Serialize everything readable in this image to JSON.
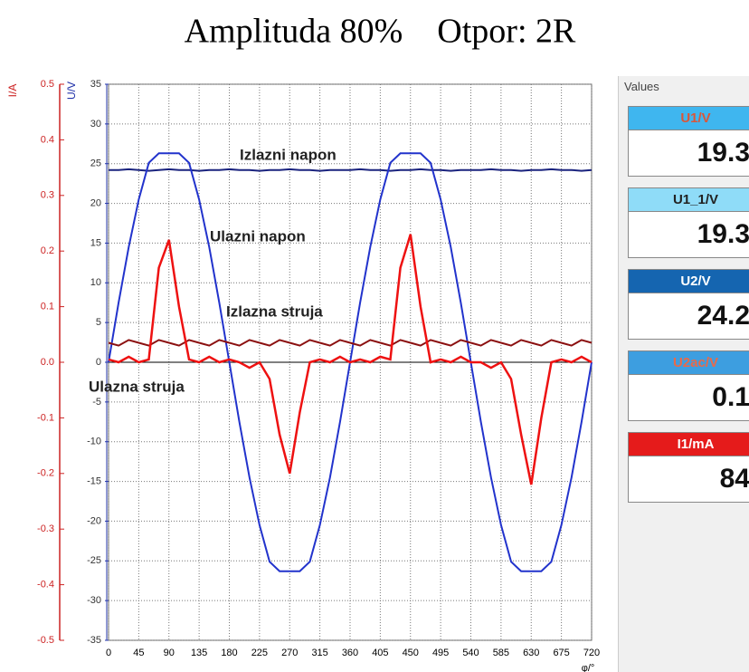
{
  "chart_data": {
    "type": "line",
    "title": "Amplituda 80%    Otpor: 2R",
    "xlabel": "φ/°",
    "ylabel": "U/V",
    "y2label": "I/A",
    "x": [
      0,
      15,
      30,
      45,
      60,
      75,
      90,
      105,
      120,
      135,
      150,
      165,
      180,
      195,
      210,
      225,
      240,
      255,
      270,
      285,
      300,
      315,
      330,
      345,
      360,
      375,
      390,
      405,
      420,
      435,
      450,
      465,
      480,
      495,
      510,
      525,
      540,
      555,
      570,
      585,
      600,
      615,
      630,
      645,
      660,
      675,
      690,
      705,
      720
    ],
    "series": [
      {
        "name": "Izlazni napon",
        "color": "#1a237e",
        "values": [
          24.2,
          24.2,
          24.3,
          24.2,
          24.1,
          24.2,
          24.3,
          24.2,
          24.2,
          24.1,
          24.2,
          24.2,
          24.3,
          24.2,
          24.2,
          24.1,
          24.2,
          24.2,
          24.3,
          24.2,
          24.2,
          24.1,
          24.2,
          24.2,
          24.2,
          24.3,
          24.2,
          24.2,
          24.1,
          24.2,
          24.2,
          24.3,
          24.2,
          24.2,
          24.1,
          24.2,
          24.2,
          24.2,
          24.3,
          24.2,
          24.2,
          24.1,
          24.2,
          24.2,
          24.3,
          24.2,
          24.2,
          24.1,
          24.2
        ]
      },
      {
        "name": "Ulazni napon",
        "color": "#2233cc",
        "values": [
          0,
          7.5,
          14.5,
          20.5,
          25.1,
          26.3,
          26.3,
          26.3,
          25.1,
          20.5,
          14.5,
          7.5,
          0,
          -7.5,
          -14.5,
          -20.5,
          -25.1,
          -26.3,
          -26.3,
          -26.3,
          -25.1,
          -20.5,
          -14.5,
          -7.5,
          0,
          7.5,
          14.5,
          20.5,
          25.1,
          26.3,
          26.3,
          26.3,
          25.1,
          20.5,
          14.5,
          7.5,
          0,
          -7.5,
          -14.5,
          -20.5,
          -25.1,
          -26.3,
          -26.3,
          -26.3,
          -25.1,
          -20.5,
          -14.5,
          -7.5,
          0
        ]
      },
      {
        "name": "Izlazna struja",
        "color": "#8b1010",
        "axis": "y2",
        "values": [
          0.035,
          0.03,
          0.04,
          0.035,
          0.03,
          0.04,
          0.035,
          0.03,
          0.04,
          0.035,
          0.03,
          0.04,
          0.035,
          0.03,
          0.04,
          0.035,
          0.03,
          0.04,
          0.035,
          0.03,
          0.04,
          0.035,
          0.03,
          0.04,
          0.035,
          0.03,
          0.04,
          0.035,
          0.03,
          0.04,
          0.035,
          0.03,
          0.04,
          0.035,
          0.03,
          0.04,
          0.035,
          0.03,
          0.04,
          0.035,
          0.03,
          0.04,
          0.035,
          0.03,
          0.04,
          0.035,
          0.03,
          0.04,
          0.035
        ]
      },
      {
        "name": "Ulazna struja",
        "color": "#ee1111",
        "axis": "y2",
        "values": [
          0.005,
          0,
          0.01,
          0,
          0.005,
          0.17,
          0.22,
          0.1,
          0.005,
          0,
          0.01,
          0,
          0.005,
          0,
          -0.01,
          0,
          -0.03,
          -0.13,
          -0.2,
          -0.09,
          0,
          0.005,
          0,
          0.01,
          0,
          0.005,
          0,
          0.01,
          0.005,
          0.17,
          0.23,
          0.1,
          0,
          0.005,
          0,
          0.01,
          0,
          0,
          -0.01,
          0,
          -0.03,
          -0.13,
          -0.22,
          -0.1,
          0,
          0.005,
          0,
          0.01,
          0
        ]
      }
    ],
    "xlim": [
      0,
      720
    ],
    "xticks": [
      0,
      45,
      90,
      135,
      180,
      225,
      270,
      315,
      360,
      405,
      450,
      495,
      540,
      585,
      630,
      675,
      720
    ],
    "ylim": [
      -35,
      35
    ],
    "yticks": [
      -35,
      -30,
      -25,
      -20,
      -15,
      -10,
      -5,
      0,
      5,
      10,
      15,
      20,
      25,
      30,
      35
    ],
    "y2lim": [
      -0.5,
      0.5
    ],
    "y2ticks": [
      -0.5,
      -0.4,
      -0.3,
      -0.2,
      -0.1,
      {
        "value": 0,
        "label": "0.0"
      },
      0.1,
      0.2,
      0.3,
      0.4,
      0.5
    ],
    "grid": true
  },
  "panel": {
    "title": "Values",
    "items": [
      {
        "label": "U1/V",
        "value": "19.3",
        "color": "#3fb6ef",
        "text_color": "#d9573a"
      },
      {
        "label": "U1_1/V",
        "value": "19.3",
        "color": "#8fdcf8",
        "text_color": "#222222"
      },
      {
        "label": "U2/V",
        "value": "24.2",
        "color": "#1565b0",
        "text_color": "#ffffff"
      },
      {
        "label": "U2ac/V",
        "value": "0.1",
        "color": "#3d9ee0",
        "text_color": "#e86a4a"
      },
      {
        "label": "I1/mA",
        "value": "84",
        "color": "#e51b1b",
        "text_color": "#ffffff"
      }
    ]
  }
}
